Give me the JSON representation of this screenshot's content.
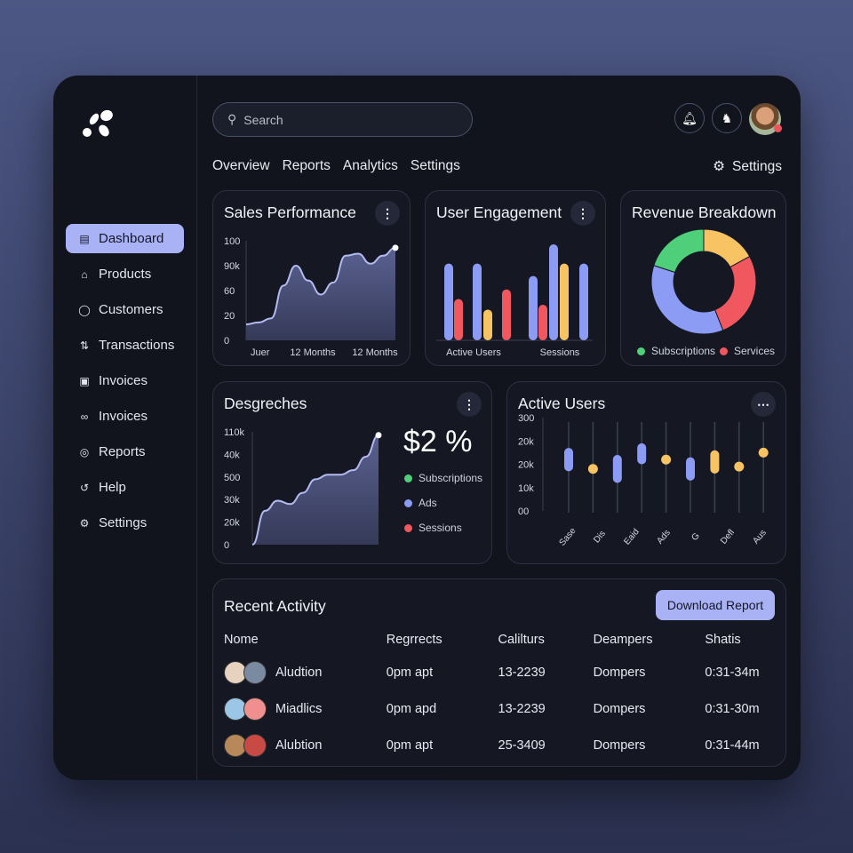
{
  "sidebar": {
    "items": [
      {
        "label": "Dashboard",
        "icon": "calendar-icon",
        "active": true
      },
      {
        "label": "Products",
        "icon": "home-icon"
      },
      {
        "label": "Customers",
        "icon": "basket-icon"
      },
      {
        "label": "Transactions",
        "icon": "transfer-icon"
      },
      {
        "label": "Invoices",
        "icon": "card-icon"
      },
      {
        "label": "Invoices",
        "icon": "link-icon"
      },
      {
        "label": "Reports",
        "icon": "badge-icon"
      },
      {
        "label": "Help",
        "icon": "help-icon"
      },
      {
        "label": "Settings",
        "icon": "gear-icon"
      }
    ]
  },
  "header": {
    "search_placeholder": "Search",
    "tabs": [
      "Overview",
      "Reports",
      "Analytics",
      "Settings"
    ],
    "settings_label": "Settings"
  },
  "colors": {
    "blue": "#8c9cf5",
    "red": "#f0575f",
    "yellow": "#f8c463",
    "green": "#4fcf7a",
    "accent": "#a9b2f5"
  },
  "chart_data": [
    {
      "type": "area",
      "title": "Sales Performance",
      "ytick_labels": [
        "0",
        "20",
        "60",
        "90k",
        "100"
      ],
      "ylim": [
        0,
        100
      ],
      "xtick_labels": [
        "Juer",
        "12 Months",
        "12 Months"
      ],
      "values": [
        16,
        18,
        22,
        55,
        75,
        60,
        46,
        58,
        85,
        87,
        77,
        85,
        93
      ]
    },
    {
      "type": "bar",
      "title": "User Engagement",
      "xtick_labels": [
        "Active Users",
        "Sessions"
      ],
      "series_colors": [
        "blue",
        "red",
        "blue",
        "yellow",
        "red",
        "blue",
        "red",
        "blue",
        "yellow",
        "blue"
      ],
      "values": [
        80,
        43,
        80,
        32,
        53,
        67,
        37,
        100,
        80,
        80
      ]
    },
    {
      "type": "pie",
      "title": "Revenue Breakdown",
      "slices": [
        {
          "color": "yellow",
          "value": 17
        },
        {
          "color": "red",
          "value": 27
        },
        {
          "color": "blue",
          "value": 36
        },
        {
          "color": "green",
          "value": 20
        }
      ],
      "legend": [
        {
          "label": "Subscriptions",
          "color": "green"
        },
        {
          "label": "Services",
          "color": "red"
        }
      ]
    },
    {
      "type": "area",
      "title": "Desgreches",
      "ytick_labels": [
        "0",
        "20k",
        "30k",
        "500",
        "40k",
        "110k"
      ],
      "ylim": [
        0,
        5
      ],
      "highlight": "$2 %",
      "values": [
        0,
        1.5,
        1.95,
        1.8,
        2.3,
        2.9,
        3.1,
        3.1,
        3.3,
        3.9,
        4.85
      ],
      "legend": [
        {
          "label": "Subscriptions",
          "color": "green"
        },
        {
          "label": "Ads",
          "color": "blue"
        },
        {
          "label": "Sessions",
          "color": "red"
        }
      ]
    },
    {
      "type": "range",
      "title": "Active Users",
      "ytick_labels": [
        "00",
        "10k",
        "20k",
        "20k",
        "300"
      ],
      "ylim": [
        0,
        4
      ],
      "xtick_labels": [
        "Sase",
        "Dis",
        "Eaid",
        "Ads",
        "G",
        "Defl",
        "Aus"
      ],
      "items": [
        {
          "color": "blue",
          "low": 1.7,
          "high": 2.7
        },
        {
          "color": "yellow",
          "low": 1.8,
          "high": 1.8
        },
        {
          "color": "blue",
          "low": 1.2,
          "high": 2.4
        },
        {
          "color": "blue",
          "low": 2.0,
          "high": 2.9
        },
        {
          "color": "yellow",
          "low": 2.2,
          "high": 2.2
        },
        {
          "color": "blue",
          "low": 1.3,
          "high": 2.3
        },
        {
          "color": "yellow",
          "low": 1.6,
          "high": 2.6
        },
        {
          "color": "yellow",
          "low": 1.9,
          "high": 1.9
        },
        {
          "color": "yellow",
          "low": 2.5,
          "high": 2.5
        }
      ]
    }
  ],
  "activity": {
    "title": "Recent Activity",
    "download_label": "Download Report",
    "columns": [
      "Nome",
      "Regrrects",
      "Calilturs",
      "Deampers",
      "Shatis"
    ],
    "rows": [
      {
        "name": "Aludtion",
        "c2": "0pm apt",
        "c3": "13-2239",
        "c4": "Dompers",
        "c5": "0:31-34m"
      },
      {
        "name": "Miadlics",
        "c2": "0pm apd",
        "c3": "13-2239",
        "c4": "Dompers",
        "c5": "0:31-30m"
      },
      {
        "name": "Alubtion",
        "c2": "0pm apt",
        "c3": "25-3409",
        "c4": "Dompers",
        "c5": "0:31-44m"
      }
    ]
  }
}
